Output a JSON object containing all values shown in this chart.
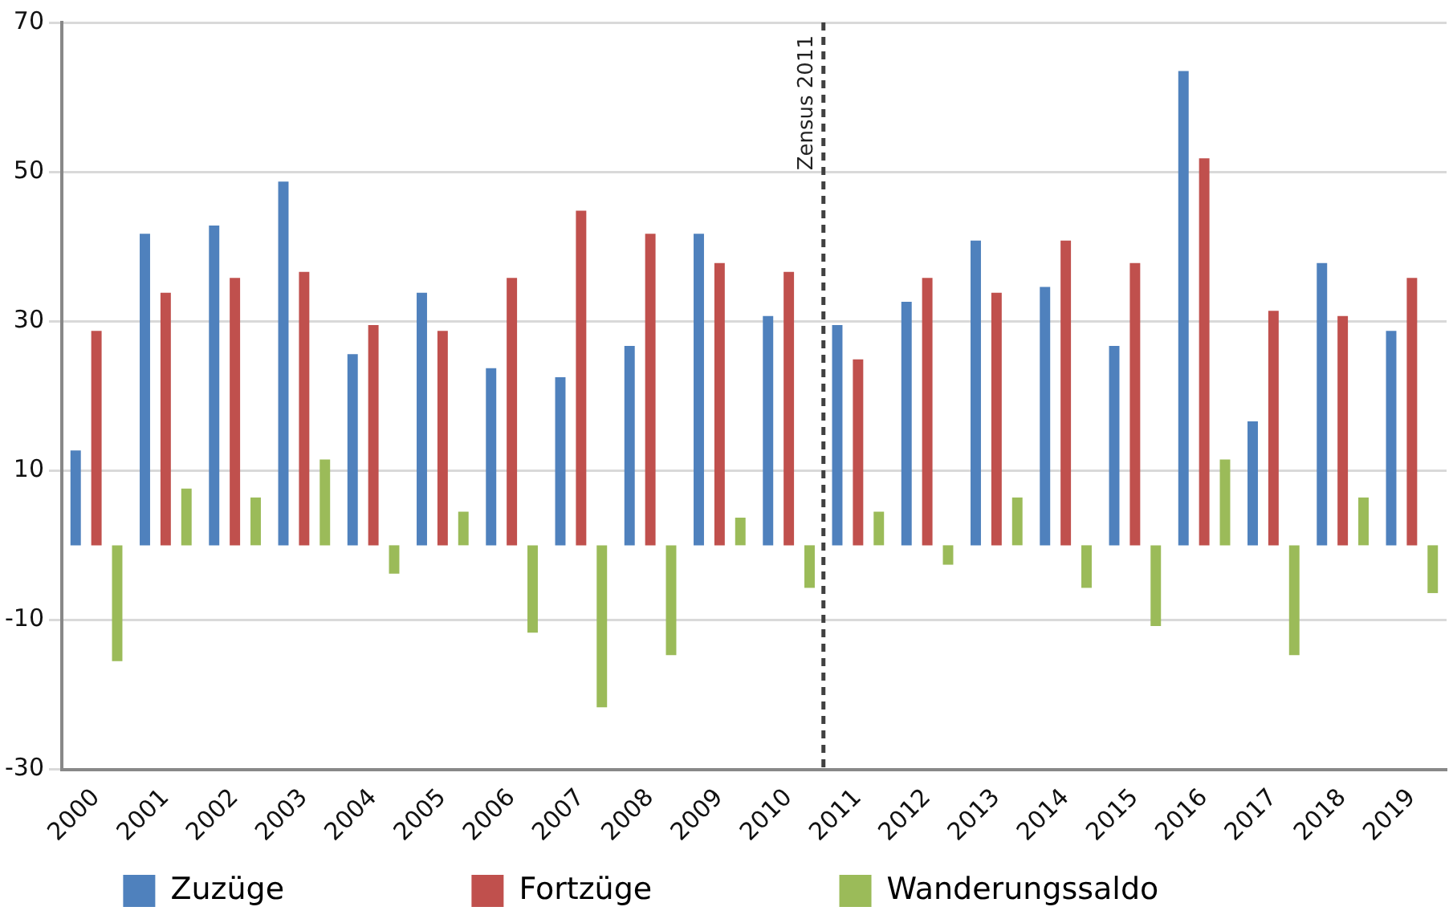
{
  "chart_data": {
    "type": "bar",
    "categories": [
      "2000",
      "2001",
      "2002",
      "2003",
      "2004",
      "2005",
      "2006",
      "2007",
      "2008",
      "2009",
      "2010",
      "2011",
      "2012",
      "2013",
      "2014",
      "2015",
      "2016",
      "2017",
      "2018",
      "2019"
    ],
    "series": [
      {
        "name": "Zuzüge",
        "color": "#4f81bd",
        "values": [
          12.7,
          41.7,
          42.8,
          48.7,
          25.6,
          33.8,
          23.7,
          22.5,
          26.7,
          41.7,
          30.7,
          29.5,
          32.6,
          40.8,
          34.6,
          26.7,
          63.5,
          16.6,
          37.8,
          28.7
        ]
      },
      {
        "name": "Fortzüge",
        "color": "#c0504d",
        "values": [
          28.7,
          33.8,
          35.8,
          36.6,
          29.5,
          28.7,
          35.8,
          44.8,
          41.7,
          37.8,
          36.6,
          24.9,
          35.8,
          33.8,
          40.8,
          37.8,
          51.8,
          31.4,
          30.7,
          35.8
        ]
      },
      {
        "name": "Wanderungssaldo",
        "color": "#9bbb59",
        "values": [
          -15.5,
          7.6,
          6.4,
          11.5,
          -3.8,
          4.5,
          -11.7,
          -21.7,
          -14.7,
          3.7,
          -5.7,
          4.5,
          -2.6,
          6.4,
          -5.7,
          -10.8,
          11.5,
          -14.7,
          6.4,
          -6.4
        ]
      }
    ],
    "ylim": [
      -30,
      70
    ],
    "yticks": [
      -30,
      -10,
      10,
      30,
      50,
      70
    ],
    "grid": "y",
    "legend": "bottom",
    "ref_lines": [
      {
        "axis": "x",
        "value": "2011",
        "label": "Zensus 2011",
        "color": "#404040",
        "line_style": "dashed"
      }
    ]
  }
}
